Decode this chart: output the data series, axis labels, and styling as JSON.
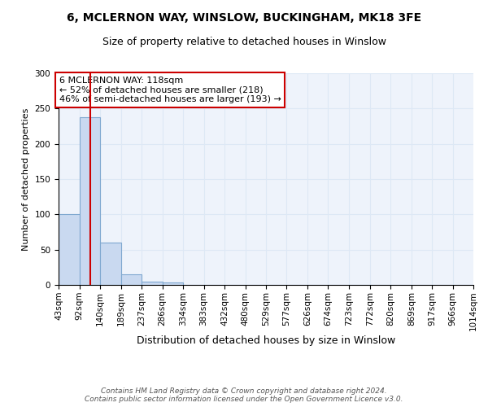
{
  "title1": "6, MCLERNON WAY, WINSLOW, BUCKINGHAM, MK18 3FE",
  "title2": "Size of property relative to detached houses in Winslow",
  "xlabel": "Distribution of detached houses by size in Winslow",
  "ylabel": "Number of detached properties",
  "bin_edges": [
    43,
    92,
    140,
    189,
    237,
    286,
    334,
    383,
    432,
    480,
    529,
    577,
    626,
    674,
    723,
    772,
    820,
    869,
    917,
    966,
    1014
  ],
  "bar_heights": [
    100,
    238,
    60,
    15,
    5,
    3,
    0,
    0,
    0,
    0,
    0,
    0,
    0,
    0,
    0,
    0,
    0,
    0,
    0,
    0
  ],
  "bar_color": "#c9d9f0",
  "bar_edge_color": "#7fa8d0",
  "grid_color": "#dde8f5",
  "background_color": "#eef3fb",
  "red_line_x": 118,
  "annotation_text": "6 MCLERNON WAY: 118sqm\n← 52% of detached houses are smaller (218)\n46% of semi-detached houses are larger (193) →",
  "annotation_box_color": "#ffffff",
  "annotation_box_edge_color": "#cc0000",
  "annotation_text_color": "#000000",
  "red_line_color": "#cc0000",
  "ylim": [
    0,
    300
  ],
  "yticks": [
    0,
    50,
    100,
    150,
    200,
    250,
    300
  ],
  "footnote": "Contains HM Land Registry data © Crown copyright and database right 2024.\nContains public sector information licensed under the Open Government Licence v3.0.",
  "title1_fontsize": 10,
  "title2_fontsize": 9,
  "xlabel_fontsize": 9,
  "ylabel_fontsize": 8,
  "tick_fontsize": 7.5,
  "annotation_fontsize": 8,
  "footnote_fontsize": 6.5
}
